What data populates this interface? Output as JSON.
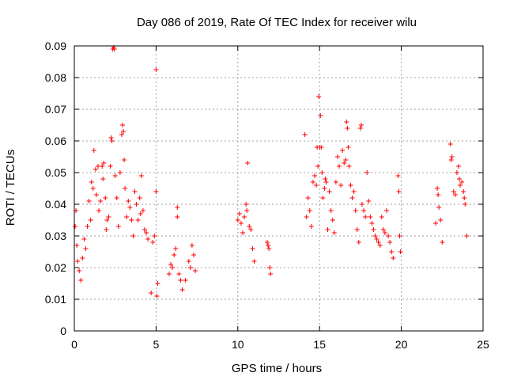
{
  "chart_data": {
    "type": "scatter",
    "title": "Day 086 of 2019, Rate Of TEC Index for receiver wilu",
    "xlabel": "GPS time / hours",
    "ylabel": "ROTI / TECUs",
    "xlim": [
      0,
      25
    ],
    "ylim": [
      0,
      0.09
    ],
    "x_ticks": [
      0,
      5,
      10,
      15,
      20,
      25
    ],
    "y_ticks": [
      0,
      0.01,
      0.02,
      0.03,
      0.04,
      0.05,
      0.06,
      0.07,
      0.08,
      0.09
    ],
    "x_tick_labels": [
      "0",
      "5",
      "10",
      "15",
      "20",
      "25"
    ],
    "y_tick_labels": [
      "0",
      "0.01",
      "0.02",
      "0.03",
      "0.04",
      "0.05",
      "0.06",
      "0.07",
      "0.08",
      "0.09"
    ],
    "grid": true,
    "marker": "+",
    "marker_color": "#ff0000",
    "series": [
      {
        "name": "ROTI",
        "points": [
          [
            0.05,
            0.033
          ],
          [
            0.1,
            0.038
          ],
          [
            0.15,
            0.027
          ],
          [
            0.2,
            0.022
          ],
          [
            0.3,
            0.019
          ],
          [
            0.4,
            0.016
          ],
          [
            0.5,
            0.023
          ],
          [
            0.6,
            0.029
          ],
          [
            0.7,
            0.026
          ],
          [
            0.8,
            0.033
          ],
          [
            0.9,
            0.041
          ],
          [
            1.0,
            0.035
          ],
          [
            1.05,
            0.047
          ],
          [
            1.15,
            0.045
          ],
          [
            1.2,
            0.057
          ],
          [
            1.3,
            0.051
          ],
          [
            1.35,
            0.043
          ],
          [
            1.45,
            0.052
          ],
          [
            1.5,
            0.038
          ],
          [
            1.6,
            0.041
          ],
          [
            1.7,
            0.052
          ],
          [
            1.75,
            0.048
          ],
          [
            1.8,
            0.053
          ],
          [
            1.9,
            0.042
          ],
          [
            1.95,
            0.032
          ],
          [
            2.0,
            0.035
          ],
          [
            2.1,
            0.036
          ],
          [
            2.2,
            0.052
          ],
          [
            2.25,
            0.061
          ],
          [
            2.3,
            0.06
          ],
          [
            2.35,
            0.089
          ],
          [
            2.4,
            0.0895
          ],
          [
            2.45,
            0.089
          ],
          [
            2.5,
            0.049
          ],
          [
            2.6,
            0.042
          ],
          [
            2.7,
            0.033
          ],
          [
            2.8,
            0.05
          ],
          [
            2.9,
            0.062
          ],
          [
            2.95,
            0.065
          ],
          [
            3.0,
            0.063
          ],
          [
            3.05,
            0.054
          ],
          [
            3.1,
            0.045
          ],
          [
            3.2,
            0.036
          ],
          [
            3.3,
            0.041
          ],
          [
            3.4,
            0.039
          ],
          [
            3.5,
            0.035
          ],
          [
            3.6,
            0.03
          ],
          [
            3.7,
            0.044
          ],
          [
            3.8,
            0.04
          ],
          [
            3.9,
            0.035
          ],
          [
            4.0,
            0.042
          ],
          [
            4.05,
            0.037
          ],
          [
            4.1,
            0.049
          ],
          [
            4.2,
            0.038
          ],
          [
            4.3,
            0.032
          ],
          [
            4.4,
            0.031
          ],
          [
            4.5,
            0.029
          ],
          [
            4.7,
            0.012
          ],
          [
            4.8,
            0.028
          ],
          [
            4.9,
            0.03
          ],
          [
            5.0,
            0.044
          ],
          [
            5.0,
            0.0825
          ],
          [
            5.05,
            0.011
          ],
          [
            5.1,
            0.015
          ],
          [
            5.8,
            0.018
          ],
          [
            5.9,
            0.021
          ],
          [
            6.0,
            0.02
          ],
          [
            6.1,
            0.024
          ],
          [
            6.2,
            0.026
          ],
          [
            6.3,
            0.039
          ],
          [
            6.3,
            0.036
          ],
          [
            6.4,
            0.018
          ],
          [
            6.5,
            0.016
          ],
          [
            6.6,
            0.013
          ],
          [
            6.8,
            0.016
          ],
          [
            7.0,
            0.022
          ],
          [
            7.1,
            0.02
          ],
          [
            7.2,
            0.027
          ],
          [
            7.3,
            0.024
          ],
          [
            7.4,
            0.019
          ],
          [
            10.0,
            0.035
          ],
          [
            10.1,
            0.037
          ],
          [
            10.2,
            0.034
          ],
          [
            10.3,
            0.031
          ],
          [
            10.4,
            0.036
          ],
          [
            10.5,
            0.04
          ],
          [
            10.55,
            0.038
          ],
          [
            10.6,
            0.053
          ],
          [
            10.7,
            0.033
          ],
          [
            10.8,
            0.032
          ],
          [
            10.9,
            0.026
          ],
          [
            11.0,
            0.022
          ],
          [
            11.8,
            0.028
          ],
          [
            11.85,
            0.027
          ],
          [
            11.9,
            0.026
          ],
          [
            11.95,
            0.02
          ],
          [
            12.0,
            0.018
          ],
          [
            14.1,
            0.062
          ],
          [
            14.2,
            0.036
          ],
          [
            14.3,
            0.042
          ],
          [
            14.4,
            0.038
          ],
          [
            14.5,
            0.033
          ],
          [
            14.6,
            0.047
          ],
          [
            14.7,
            0.049
          ],
          [
            14.8,
            0.046
          ],
          [
            14.85,
            0.058
          ],
          [
            14.9,
            0.052
          ],
          [
            14.95,
            0.074
          ],
          [
            15.0,
            0.058
          ],
          [
            15.05,
            0.068
          ],
          [
            15.1,
            0.058
          ],
          [
            15.15,
            0.05
          ],
          [
            15.2,
            0.042
          ],
          [
            15.3,
            0.045
          ],
          [
            15.35,
            0.048
          ],
          [
            15.4,
            0.047
          ],
          [
            15.5,
            0.032
          ],
          [
            15.6,
            0.044
          ],
          [
            15.7,
            0.038
          ],
          [
            15.8,
            0.035
          ],
          [
            15.9,
            0.031
          ],
          [
            16.0,
            0.047
          ],
          [
            16.1,
            0.055
          ],
          [
            16.2,
            0.052
          ],
          [
            16.3,
            0.046
          ],
          [
            16.4,
            0.057
          ],
          [
            16.5,
            0.053
          ],
          [
            16.6,
            0.054
          ],
          [
            16.65,
            0.066
          ],
          [
            16.7,
            0.064
          ],
          [
            16.75,
            0.058
          ],
          [
            16.8,
            0.052
          ],
          [
            16.9,
            0.046
          ],
          [
            17.0,
            0.042
          ],
          [
            17.1,
            0.044
          ],
          [
            17.2,
            0.038
          ],
          [
            17.3,
            0.032
          ],
          [
            17.4,
            0.028
          ],
          [
            17.5,
            0.064
          ],
          [
            17.55,
            0.065
          ],
          [
            17.6,
            0.04
          ],
          [
            17.7,
            0.038
          ],
          [
            17.8,
            0.036
          ],
          [
            17.9,
            0.05
          ],
          [
            18.0,
            0.041
          ],
          [
            18.1,
            0.036
          ],
          [
            18.2,
            0.034
          ],
          [
            18.3,
            0.032
          ],
          [
            18.4,
            0.03
          ],
          [
            18.5,
            0.029
          ],
          [
            18.6,
            0.028
          ],
          [
            18.7,
            0.027
          ],
          [
            18.8,
            0.036
          ],
          [
            18.9,
            0.032
          ],
          [
            19.0,
            0.031
          ],
          [
            19.1,
            0.038
          ],
          [
            19.2,
            0.03
          ],
          [
            19.3,
            0.028
          ],
          [
            19.4,
            0.025
          ],
          [
            19.5,
            0.023
          ],
          [
            19.8,
            0.049
          ],
          [
            19.85,
            0.044
          ],
          [
            19.9,
            0.03
          ],
          [
            19.95,
            0.025
          ],
          [
            22.1,
            0.034
          ],
          [
            22.2,
            0.045
          ],
          [
            22.25,
            0.043
          ],
          [
            22.3,
            0.039
          ],
          [
            22.4,
            0.035
          ],
          [
            22.5,
            0.028
          ],
          [
            23.0,
            0.059
          ],
          [
            23.05,
            0.054
          ],
          [
            23.1,
            0.055
          ],
          [
            23.2,
            0.044
          ],
          [
            23.3,
            0.043
          ],
          [
            23.4,
            0.05
          ],
          [
            23.5,
            0.052
          ],
          [
            23.55,
            0.048
          ],
          [
            23.6,
            0.046
          ],
          [
            23.7,
            0.047
          ],
          [
            23.8,
            0.044
          ],
          [
            23.85,
            0.042
          ],
          [
            23.9,
            0.04
          ],
          [
            24.0,
            0.03
          ]
        ]
      }
    ]
  }
}
